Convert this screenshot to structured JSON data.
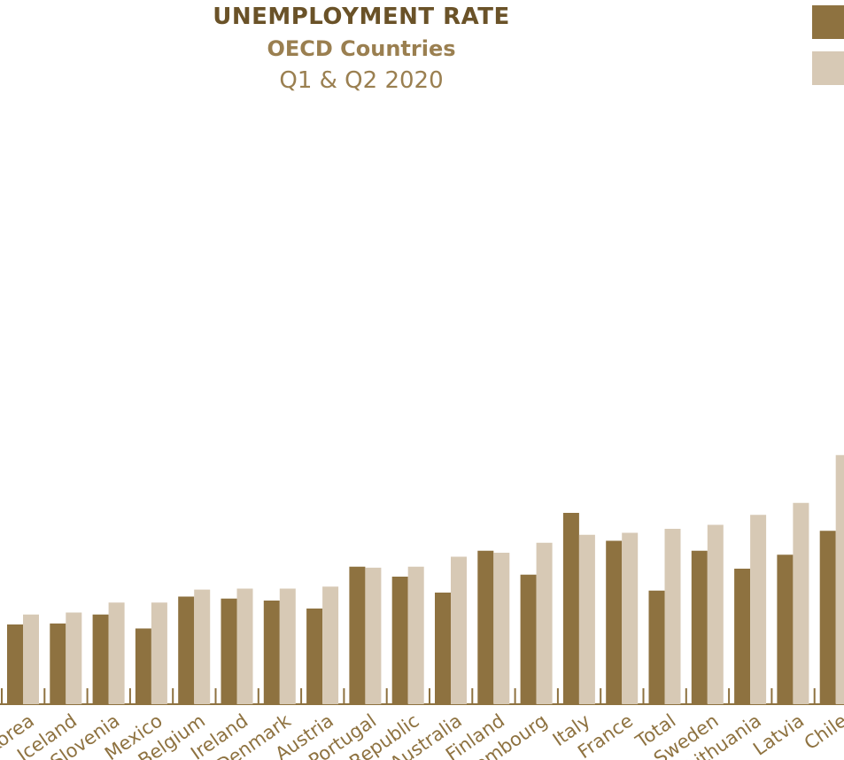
{
  "colors": {
    "q1": "#8e7240",
    "q2": "#d7c9b5",
    "title": "#6a5228",
    "subtitle": "#9a7f50",
    "axis": "#8e7240"
  },
  "header": {
    "title": "UNEMPLOYMENT RATE",
    "subtitle": "OECD Countries",
    "period": "Q1 & Q2 2020"
  },
  "chart_data": {
    "type": "bar",
    "categories": [
      "Korea",
      "Iceland",
      "Slovenia",
      "Mexico",
      "Belgium",
      "Ireland",
      "Denmark",
      "Austria",
      "Portugal",
      "Republic",
      "Australia",
      "Finland",
      "Luxembourg",
      "Italy",
      "France",
      "Total",
      "Sweden",
      "Lithuania",
      "Latvia",
      "Chile"
    ],
    "series": [
      {
        "values": [
          4.0,
          4.05,
          4.5,
          3.8,
          5.4,
          5.3,
          5.2,
          4.8,
          6.9,
          6.4,
          5.6,
          7.7,
          6.5,
          9.6,
          8.2,
          5.7,
          7.7,
          6.8,
          7.5,
          8.7
        ]
      },
      {
        "values": [
          4.5,
          4.6,
          5.1,
          5.1,
          5.75,
          5.8,
          5.8,
          5.9,
          6.85,
          6.9,
          7.4,
          7.6,
          8.1,
          8.5,
          8.6,
          8.8,
          9.0,
          9.5,
          10.1,
          12.5
        ]
      }
    ],
    "ylim": [
      0,
      30
    ],
    "legend": "top-right"
  }
}
